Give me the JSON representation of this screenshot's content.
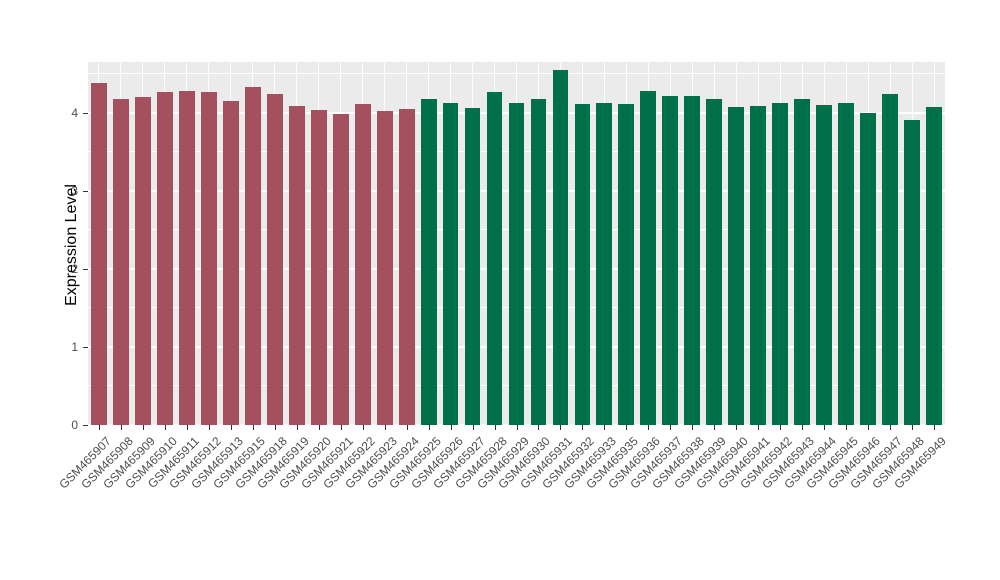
{
  "chart_data": {
    "type": "bar",
    "title": "",
    "xlabel": "",
    "ylabel": "Expression Level",
    "ylim": [
      0,
      4.65
    ],
    "yticks": [
      0,
      1,
      2,
      3,
      4
    ],
    "ytick_labels": [
      "0",
      "1",
      "2",
      "3",
      "4"
    ],
    "grid": "on",
    "legend_position": "none",
    "categories": [
      "GSM465907",
      "GSM465908",
      "GSM465909",
      "GSM465910",
      "GSM465911",
      "GSM465912",
      "GSM465913",
      "GSM465915",
      "GSM465918",
      "GSM465919",
      "GSM465920",
      "GSM465921",
      "GSM465922",
      "GSM465923",
      "GSM465924",
      "GSM465925",
      "GSM465926",
      "GSM465927",
      "GSM465928",
      "GSM465929",
      "GSM465930",
      "GSM465931",
      "GSM465932",
      "GSM465933",
      "GSM465935",
      "GSM465936",
      "GSM465937",
      "GSM465938",
      "GSM465939",
      "GSM465940",
      "GSM465941",
      "GSM465942",
      "GSM465943",
      "GSM465944",
      "GSM465945",
      "GSM465946",
      "GSM465947",
      "GSM465948",
      "GSM465949"
    ],
    "values": [
      4.38,
      4.17,
      4.2,
      4.27,
      4.28,
      4.26,
      4.15,
      4.33,
      4.24,
      4.09,
      4.04,
      3.98,
      4.11,
      4.02,
      4.05,
      4.17,
      4.12,
      4.06,
      4.26,
      4.13,
      4.17,
      4.55,
      4.11,
      4.13,
      4.11,
      4.28,
      4.21,
      4.21,
      4.17,
      4.07,
      4.09,
      4.12,
      4.18,
      4.1,
      4.13,
      4.0,
      4.24,
      3.91,
      4.07
    ],
    "bar_groups": [
      0,
      0,
      0,
      0,
      0,
      0,
      0,
      0,
      0,
      0,
      0,
      0,
      0,
      0,
      0,
      1,
      1,
      1,
      1,
      1,
      1,
      1,
      1,
      1,
      1,
      1,
      1,
      1,
      1,
      1,
      1,
      1,
      1,
      1,
      1,
      1,
      1,
      1,
      1
    ],
    "group_colors": [
      "#A5505E",
      "#00704A"
    ],
    "panel_background": "#EBEBEB",
    "grid_color": "#FFFFFF",
    "axis_text_color": "#4D4D4D"
  }
}
